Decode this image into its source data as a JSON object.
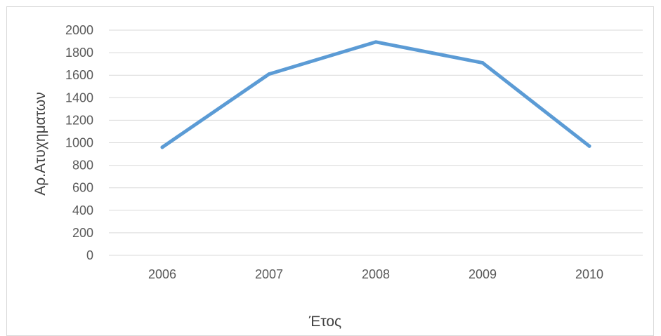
{
  "chart_data": {
    "type": "line",
    "title": "",
    "xlabel": "Έτος",
    "ylabel": "Αρ.Ατυχηματων",
    "categories": [
      "2006",
      "2007",
      "2008",
      "2009",
      "2010"
    ],
    "series": [
      {
        "values": [
          960,
          1610,
          1895,
          1710,
          970
        ]
      }
    ],
    "ylim": [
      0,
      2000
    ],
    "yticks": [
      0,
      200,
      400,
      600,
      800,
      1000,
      1200,
      1400,
      1600,
      1800,
      2000
    ],
    "grid": true,
    "legend": "none",
    "colors": {
      "line": "#5b9bd5",
      "grid": "#d9d9d9",
      "text": "#595959"
    }
  }
}
